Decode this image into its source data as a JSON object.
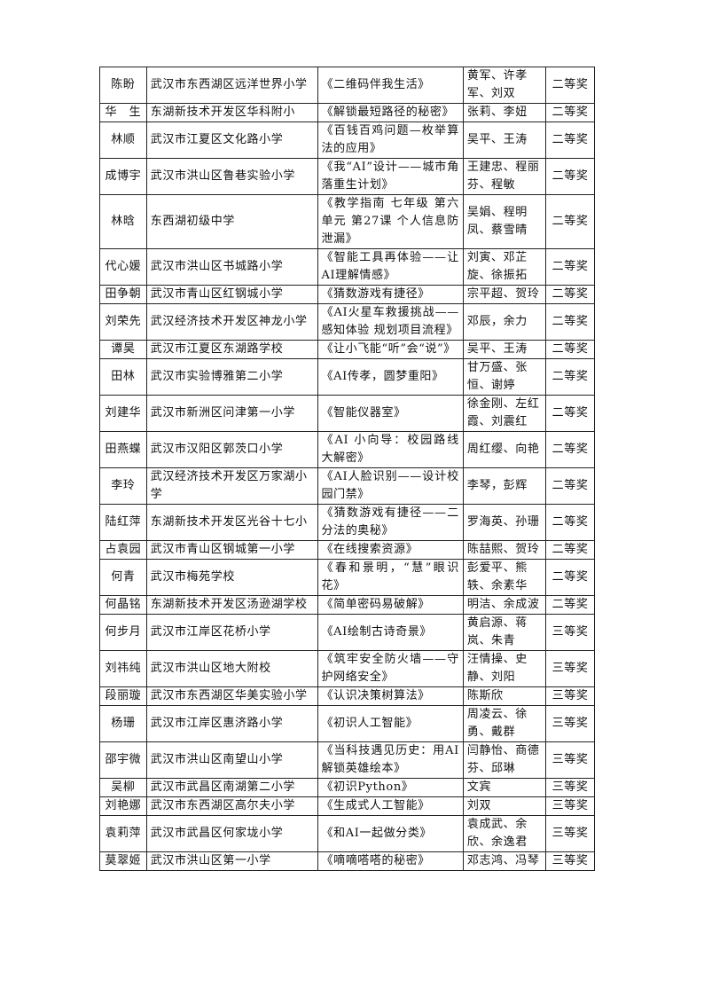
{
  "table": {
    "rows": [
      {
        "name": "陈盼",
        "school": "武汉市东西湖区远洋世界小学",
        "work": "《二维码伴我生活》",
        "teachers": "黄军、许孝军、刘双",
        "award": "二等奖"
      },
      {
        "name": "华　生",
        "school": "东湖新技术开发区华科附小",
        "work": "《解锁最短路径的秘密》",
        "teachers": "张莉、李妞",
        "award": "二等奖"
      },
      {
        "name": "林顺",
        "school": "武汉市江夏区文化路小学",
        "work": "《百钱百鸡问题—枚举算法的应用》",
        "teachers": "吴平、王涛",
        "award": "二等奖"
      },
      {
        "name": "成博宇",
        "school": "武汉市洪山区鲁巷实验小学",
        "work": "《我“AI”设计——城市角落重生计划》",
        "teachers": "王建忠、程丽芬、程敏",
        "award": "二等奖"
      },
      {
        "name": "林晗",
        "school": "东西湖初级中学",
        "work": "《教学指南 七年级 第六单元 第27课 个人信息防泄漏》",
        "teachers": "吴娟、程明凤、蔡雪晴",
        "award": "二等奖"
      },
      {
        "name": "代心媛",
        "school": "武汉市洪山区书城路小学",
        "work": "《智能工具再体验——让AI理解情感》",
        "teachers": "刘寅、邓芷旋、徐振拓",
        "award": "二等奖"
      },
      {
        "name": "田争朝",
        "school": "武汉市青山区红钢城小学",
        "work": "《猜数游戏有捷径》",
        "teachers": "宗平超、贺玲",
        "award": "二等奖"
      },
      {
        "name": "刘荣先",
        "school": "武汉经济技术开发区神龙小学",
        "work": "《AI火星车救援挑战——感知体验 规划项目流程》",
        "teachers": "邓辰，余力",
        "award": "二等奖"
      },
      {
        "name": "谭昊",
        "school": "武汉市江夏区东湖路学校",
        "work": "《让小飞能“听”会“说”》",
        "teachers": "吴平、王涛",
        "award": "二等奖"
      },
      {
        "name": "田林",
        "school": "武汉市实验博雅第二小学",
        "work": "《AI传孝，圆梦重阳》",
        "teachers": "甘万盛、张恒、谢婷",
        "award": "二等奖"
      },
      {
        "name": "刘建华",
        "school": "武汉市新洲区问津第一小学",
        "work": "《智能仪器室》",
        "teachers": "徐金刚、左红霞、刘震红",
        "award": "二等奖"
      },
      {
        "name": "田燕蝶",
        "school": "武汉市汉阳区郭茨口小学",
        "work": "《AI 小向导：校园路线大解密》",
        "teachers": "周红缨、向艳",
        "award": "二等奖"
      },
      {
        "name": "李玲",
        "school": "武汉经济技术开发区万家湖小学",
        "work": "《AI人脸识别——设计校园门禁》",
        "teachers": "李琴，彭辉",
        "award": "二等奖"
      },
      {
        "name": "陆红萍",
        "school": "东湖新技术开发区光谷十七小",
        "work": "《猜数游戏有捷径——二分法的奥秘》",
        "teachers": "罗海英、孙珊",
        "award": "二等奖"
      },
      {
        "name": "占袁园",
        "school": "武汉市青山区钢城第一小学",
        "work": "《在线搜索资源》",
        "teachers": "陈喆熙、贺玲",
        "award": "二等奖"
      },
      {
        "name": "何青",
        "school": "武汉市梅苑学校",
        "work": "《春和景明，“慧”眼识花》",
        "teachers": "彭爱平、熊轶、余素华",
        "award": "二等奖"
      },
      {
        "name": "何晶铭",
        "school": "东湖新技术开发区汤逊湖学校",
        "work": "《简单密码易破解》",
        "teachers": "明洁、余成波",
        "award": "二等奖"
      },
      {
        "name": "何步月",
        "school": "武汉市江岸区花桥小学",
        "work": "《AI绘制古诗奇景》",
        "teachers": "黄启源、蒋岚、朱青",
        "award": "三等奖"
      },
      {
        "name": "刘祎纯",
        "school": "武汉市洪山区地大附校",
        "work": "《筑牢安全防火墙——守护网络安全》",
        "teachers": "汪情操、史静、刘阳",
        "award": "三等奖"
      },
      {
        "name": "段丽璇",
        "school": "武汉市东西湖区华美实验小学",
        "work": "《认识决策树算法》",
        "teachers": "陈斯欣",
        "award": "三等奖"
      },
      {
        "name": "杨珊",
        "school": "武汉市江岸区惠济路小学",
        "work": "《初识人工智能》",
        "teachers": "周凌云、徐勇、戴群",
        "award": "三等奖"
      },
      {
        "name": "邵宇微",
        "school": "武汉市洪山区南望山小学",
        "work": "《当科技遇见历史：用AI解锁英雄绘本》",
        "teachers": "闫静怡、商德芬、邱琳",
        "award": "三等奖"
      },
      {
        "name": "吴柳",
        "school": "武汉市武昌区南湖第二小学",
        "work": "《初识Python》",
        "teachers": "文宾",
        "award": "三等奖"
      },
      {
        "name": "刘艳娜",
        "school": "武汉市东西湖区高尔夫小学",
        "work": "《生成式人工智能》",
        "teachers": "刘双",
        "award": "三等奖"
      },
      {
        "name": "袁莉萍",
        "school": "武汉市武昌区何家垅小学",
        "work": "《和AI一起做分类》",
        "teachers": "袁成武、余欣、余逸君",
        "award": "三等奖"
      },
      {
        "name": "莫翠姬",
        "school": "武汉市洪山区第一小学",
        "work": "《嘀嘀嗒嗒的秘密》",
        "teachers": "邓志鸿、冯琴",
        "award": "三等奖"
      }
    ]
  }
}
